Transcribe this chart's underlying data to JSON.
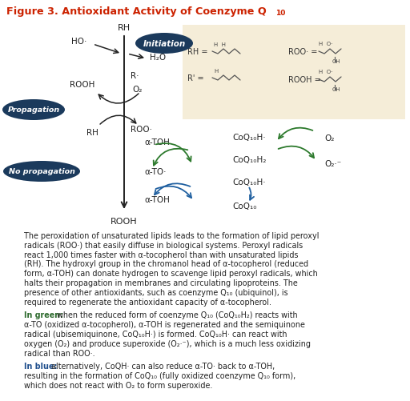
{
  "title": "Figure 3. Antioxidant Activity of Coenzyme Q",
  "title_sub": "10",
  "title_color": "#CC2200",
  "bg_color": "#FFFFFF",
  "fig_bg": "#F5EDD8",
  "paragraph1": "The peroxidation of unsaturated lipids leads to the formation of lipid peroxyl\nradicals (ROO·) that easily diffuse in biological systems. Peroxyl radicals\nreact 1,000 times faster with α-tocopherol than with unsaturated lipids\n(RH). The hydroxyl group in the chromanol head of α-tocopherol (reduced\nform, α-TOH) can donate hydrogen to scavenge lipid peroxyl radicals, which\nhalts their propagation in membranes and circulating lipoproteins. The\npresence of other antioxidants, such as coenzyme Q₁₀ (ubiquinol), is\nrequired to regenerate the antioxidant capacity of α-tocopherol.",
  "paragraph2_prefix": "In green:",
  "paragraph2_body": " when the reduced form of coenzyme Q₁₀ (CoQ₁₀H₂) reacts with\nα-TO (oxidized α-tocopherol), α-TOH is regenerated and the semiquinone\nradical (ubisemiquinone, CoQ₁₀H·) is formed. CoQ₁₀H· can react with\noxygen (O₂) and produce superoxide (O₂·⁻), which is a much less oxidizing\nradical than ROO·.",
  "paragraph3_prefix": "In blue:",
  "paragraph3_body": " alternatively, CoQH· can also reduce α-TO· back to α-TOH,\nresulting in the formation of CoQ₁₀ (fully oxidized coenzyme Q₁₀ form),\nwhich does not react with O₂ to form superoxide.",
  "green_color": "#2D6A2D",
  "blue_color": "#1F4E8C",
  "dark_teal": "#1B3A5C",
  "arrow_black": "#222222",
  "arrow_green": "#2D7A2D",
  "arrow_blue": "#2060A0"
}
